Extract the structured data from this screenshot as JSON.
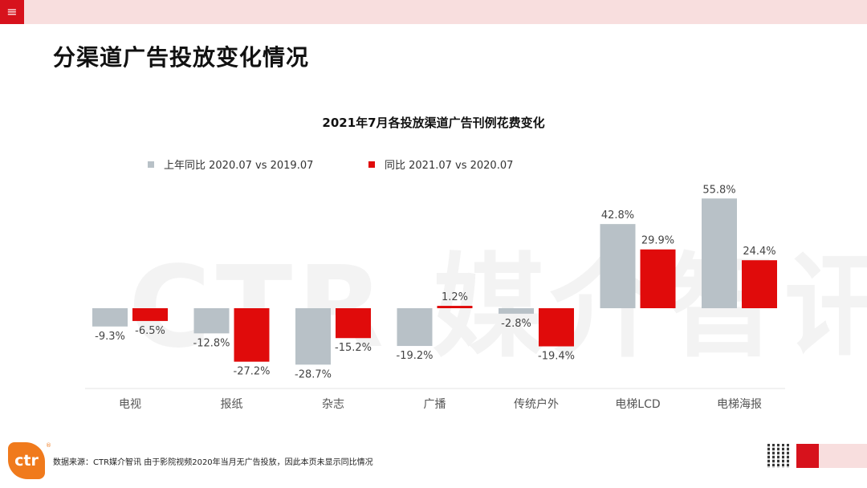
{
  "header": {
    "menu_icon": "≡",
    "page_title": "分渠道广告投放变化情况"
  },
  "watermark": "CTR 媒介智讯",
  "colors": {
    "prev": "#b8c1c7",
    "curr": "#e00b0b",
    "accent": "#d7121c"
  },
  "chart_data": {
    "type": "bar",
    "title": "2021年7月各投放渠道广告刊例花费变化",
    "categories": [
      "电视",
      "报纸",
      "杂志",
      "广播",
      "传统户外",
      "电梯LCD",
      "电梯海报"
    ],
    "series": [
      {
        "name": "上年同比 2020.07 vs 2019.07",
        "values": [
          -9.3,
          -12.8,
          -28.7,
          -19.2,
          -2.8,
          42.8,
          55.8
        ],
        "labels": [
          "-9.3%",
          "-12.8%",
          "-28.7%",
          "-19.2%",
          "-2.8%",
          "42.8%",
          "55.8%"
        ]
      },
      {
        "name": "同比 2021.07 vs 2020.07",
        "values": [
          -6.5,
          -27.2,
          -15.2,
          1.2,
          -19.4,
          29.9,
          24.4
        ],
        "labels": [
          "-6.5%",
          "-27.2%",
          "-15.2%",
          "1.2%",
          "-19.4%",
          "29.9%",
          "24.4%"
        ]
      }
    ],
    "unit": "%",
    "ylim": [
      -32,
      60
    ],
    "legend": "top-left",
    "grid": false
  },
  "footer": {
    "logo_text": "ctr",
    "logo_mark": "®",
    "source": "数据来源：CTR媒介智讯   由于影院视频2020年当月无广告投放，因此本页未显示同比情况"
  }
}
